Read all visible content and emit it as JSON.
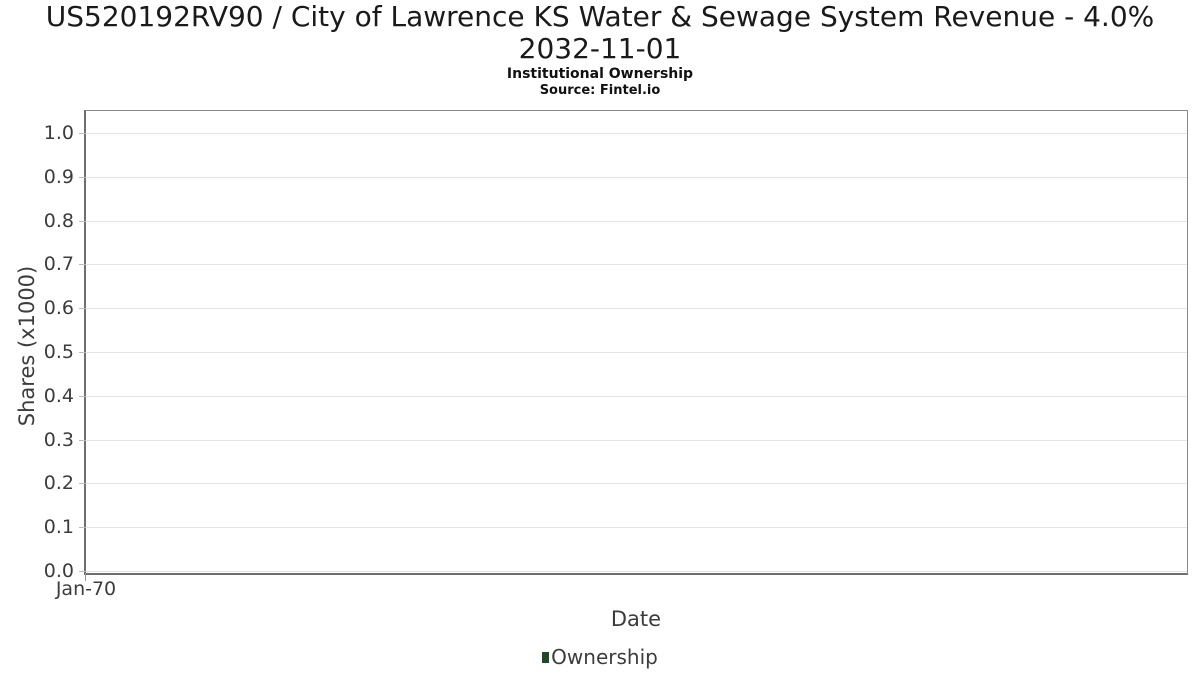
{
  "header": {
    "title_line1": "US520192RV90 / City of Lawrence KS Water & Sewage System Revenue - 4.0%",
    "title_line2": "2032-11-01",
    "subtitle": "Institutional Ownership",
    "source": "Source: Fintel.io"
  },
  "chart_data": {
    "type": "line",
    "title": "US520192RV90 / City of Lawrence KS Water & Sewage System Revenue - 4.0% 2032-11-01",
    "subtitle": "Institutional Ownership",
    "source": "Source: Fintel.io",
    "xlabel": "Date",
    "ylabel": "Shares (x1000)",
    "x_ticks": [
      {
        "label": "Jan-70",
        "position": 0.0
      }
    ],
    "y_ticks": [
      {
        "label": "0.0",
        "value": 0.0
      },
      {
        "label": "0.1",
        "value": 0.1
      },
      {
        "label": "0.2",
        "value": 0.2
      },
      {
        "label": "0.3",
        "value": 0.3
      },
      {
        "label": "0.4",
        "value": 0.4
      },
      {
        "label": "0.5",
        "value": 0.5
      },
      {
        "label": "0.6",
        "value": 0.6
      },
      {
        "label": "0.7",
        "value": 0.7
      },
      {
        "label": "0.8",
        "value": 0.8
      },
      {
        "label": "0.9",
        "value": 0.9
      },
      {
        "label": "1.0",
        "value": 1.0
      }
    ],
    "ylim": [
      0.0,
      1.05
    ],
    "grid": "horizontal",
    "legend": {
      "position": "bottom",
      "entries": [
        {
          "label": "Ownership",
          "color": "#1e4a2a"
        }
      ]
    },
    "series": [
      {
        "name": "Ownership",
        "x": [],
        "y": []
      }
    ]
  },
  "colors": {
    "legend_ownership": "#1e4a2a",
    "gridline": "#e4e4e4",
    "plot_border": "#8a8a8a",
    "axis_text": "#3c3c3c",
    "title_text": "#1a1a1a"
  }
}
